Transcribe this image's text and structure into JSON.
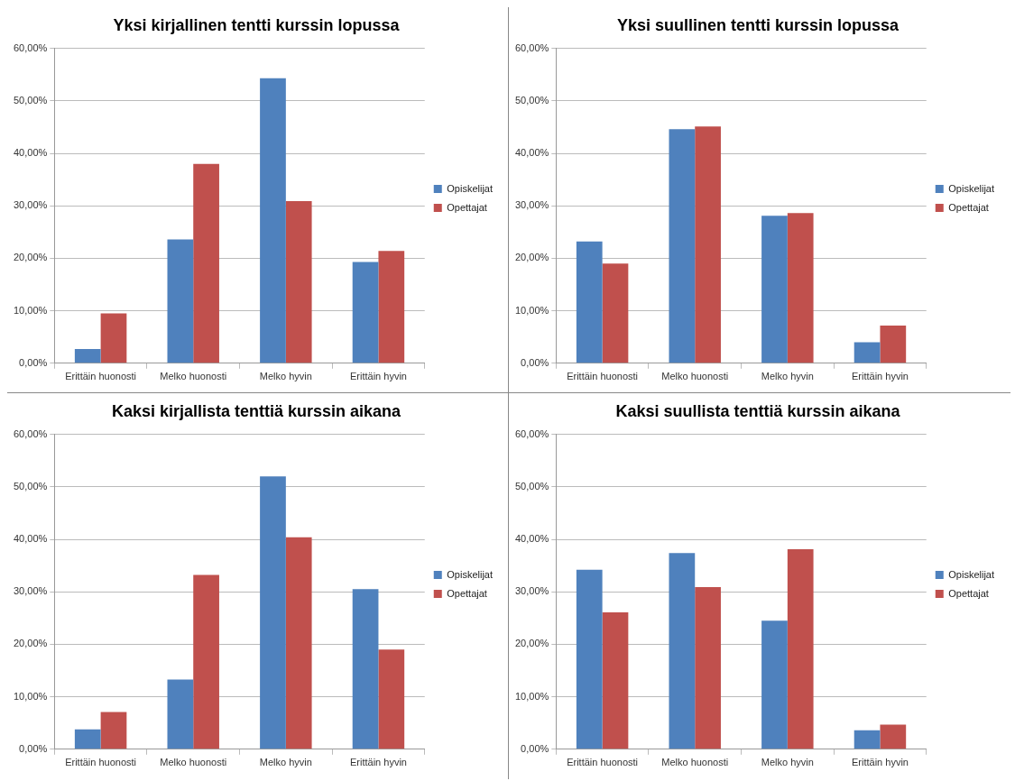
{
  "chart_data": [
    {
      "type": "bar",
      "title": "Yksi kirjallinen tentti kurssin lopussa",
      "categories": [
        "Erittäin huonosti",
        "Melko huonosti",
        "Melko hyvin",
        "Erittäin hyvin"
      ],
      "series": [
        {
          "name": "Opiskelijat",
          "color": "#4f81bd",
          "values": [
            2.7,
            23.6,
            54.3,
            19.3
          ]
        },
        {
          "name": "Opettajat",
          "color": "#c0504d",
          "values": [
            9.5,
            38.0,
            30.9,
            21.4
          ]
        }
      ],
      "ylim": [
        0,
        60
      ],
      "yticks": [
        {
          "value": 0,
          "label": "0,00%"
        },
        {
          "value": 10,
          "label": "10,00%"
        },
        {
          "value": 20,
          "label": "20,00%"
        },
        {
          "value": 30,
          "label": "30,00%"
        },
        {
          "value": 40,
          "label": "40,00%"
        },
        {
          "value": 50,
          "label": "50,00%"
        },
        {
          "value": 60,
          "label": "60,00%"
        }
      ],
      "grid": "y",
      "legend": "right"
    },
    {
      "type": "bar",
      "title": "Yksi suullinen tentti kurssin lopussa",
      "categories": [
        "Erittäin huonosti",
        "Melko huonosti",
        "Melko hyvin",
        "Erittäin hyvin"
      ],
      "series": [
        {
          "name": "Opiskelijat",
          "color": "#4f81bd",
          "values": [
            23.2,
            44.6,
            28.1,
            4.0
          ]
        },
        {
          "name": "Opettajat",
          "color": "#c0504d",
          "values": [
            19.0,
            45.1,
            28.6,
            7.2
          ]
        }
      ],
      "ylim": [
        0,
        60
      ],
      "yticks": [
        {
          "value": 0,
          "label": "0,00%"
        },
        {
          "value": 10,
          "label": "10,00%"
        },
        {
          "value": 20,
          "label": "20,00%"
        },
        {
          "value": 30,
          "label": "30,00%"
        },
        {
          "value": 40,
          "label": "40,00%"
        },
        {
          "value": 50,
          "label": "50,00%"
        },
        {
          "value": 60,
          "label": "60,00%"
        }
      ],
      "grid": "y",
      "legend": "right"
    },
    {
      "type": "bar",
      "title": "Kaksi kirjallista tenttiä kurssin aikana",
      "categories": [
        "Erittäin huonosti",
        "Melko huonosti",
        "Melko hyvin",
        "Erittäin hyvin"
      ],
      "series": [
        {
          "name": "Opiskelijat",
          "color": "#4f81bd",
          "values": [
            3.8,
            13.3,
            52.0,
            30.5
          ]
        },
        {
          "name": "Opettajat",
          "color": "#c0504d",
          "values": [
            7.1,
            33.2,
            40.4,
            19.0
          ]
        }
      ],
      "ylim": [
        0,
        60
      ],
      "yticks": [
        {
          "value": 0,
          "label": "0,00%"
        },
        {
          "value": 10,
          "label": "10,00%"
        },
        {
          "value": 20,
          "label": "20,00%"
        },
        {
          "value": 30,
          "label": "30,00%"
        },
        {
          "value": 40,
          "label": "40,00%"
        },
        {
          "value": 50,
          "label": "50,00%"
        },
        {
          "value": 60,
          "label": "60,00%"
        }
      ],
      "grid": "y",
      "legend": "right"
    },
    {
      "type": "bar",
      "title": "Kaksi suullista tenttiä kurssin aikana",
      "categories": [
        "Erittäin huonosti",
        "Melko huonosti",
        "Melko hyvin",
        "Erittäin hyvin"
      ],
      "series": [
        {
          "name": "Opiskelijat",
          "color": "#4f81bd",
          "values": [
            34.2,
            37.4,
            24.5,
            3.6
          ]
        },
        {
          "name": "Opettajat",
          "color": "#c0504d",
          "values": [
            26.1,
            30.9,
            38.1,
            4.7
          ]
        }
      ],
      "ylim": [
        0,
        60
      ],
      "yticks": [
        {
          "value": 0,
          "label": "0,00%"
        },
        {
          "value": 10,
          "label": "10,00%"
        },
        {
          "value": 20,
          "label": "20,00%"
        },
        {
          "value": 30,
          "label": "30,00%"
        },
        {
          "value": 40,
          "label": "40,00%"
        },
        {
          "value": 50,
          "label": "50,00%"
        },
        {
          "value": 60,
          "label": "60,00%"
        }
      ],
      "grid": "y",
      "legend": "right"
    }
  ]
}
